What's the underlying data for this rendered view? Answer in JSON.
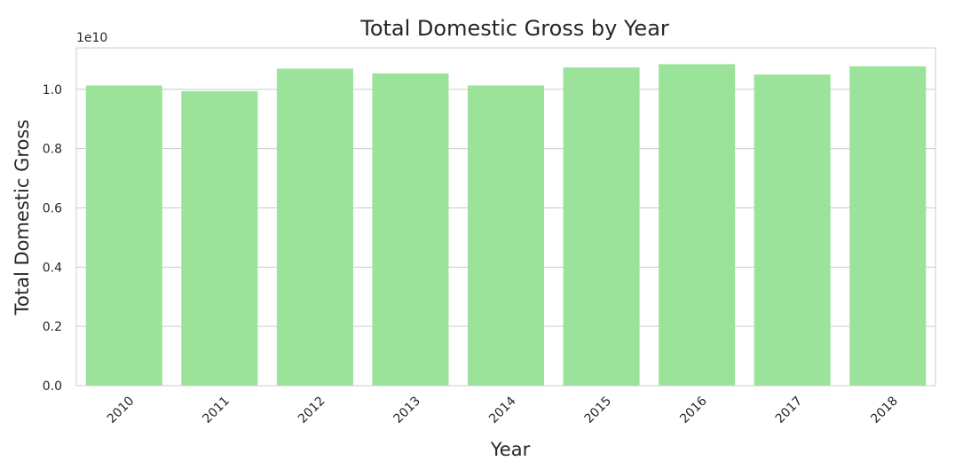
{
  "chart_data": {
    "type": "bar",
    "title": "Total Domestic Gross by Year",
    "xlabel": "Year",
    "ylabel": "Total Domestic Gross",
    "offset_label": "1e10",
    "categories": [
      "2010",
      "2011",
      "2012",
      "2013",
      "2014",
      "2015",
      "2016",
      "2017",
      "2018"
    ],
    "values": [
      10130000000,
      9940000000,
      10700000000,
      10540000000,
      10130000000,
      10740000000,
      10850000000,
      10500000000,
      10780000000
    ],
    "ylim": [
      0,
      11400000000
    ],
    "yticks": [
      0,
      2000000000,
      4000000000,
      6000000000,
      8000000000,
      10000000000
    ],
    "ytick_labels": [
      "0.0",
      "0.2",
      "0.4",
      "0.6",
      "0.8",
      "1.0"
    ],
    "bar_color": "#9be39b",
    "grid_color": "#cccccc",
    "grid": "horizontal"
  }
}
